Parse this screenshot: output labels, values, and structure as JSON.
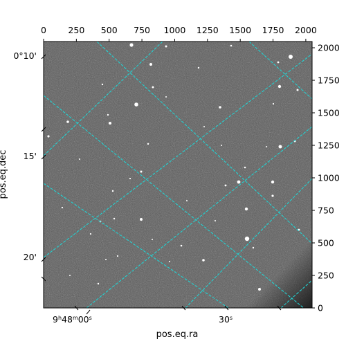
{
  "image": {
    "kind": "astronomical sky image (grayscale) with RA/Dec grid overlay",
    "colors": {
      "background_gray": "#5a5a5a",
      "grid": "#22d3d3",
      "stars": "#ffffff",
      "frame": "#000000"
    }
  },
  "axes": {
    "xlabel": "pos.eq.ra",
    "ylabel": "pos.eq.dec",
    "pixel_x_ticks": [
      "0",
      "250",
      "500",
      "750",
      "1000",
      "1250",
      "1500",
      "1750",
      "2000"
    ],
    "pixel_y_ticks": [
      "0",
      "250",
      "500",
      "750",
      "1000",
      "1250",
      "1500",
      "1750",
      "2000"
    ],
    "dec_ticks": [
      "0°10'",
      "15'",
      "20'"
    ],
    "ra_ticks": [
      "9h48m00s",
      "30s"
    ]
  }
}
